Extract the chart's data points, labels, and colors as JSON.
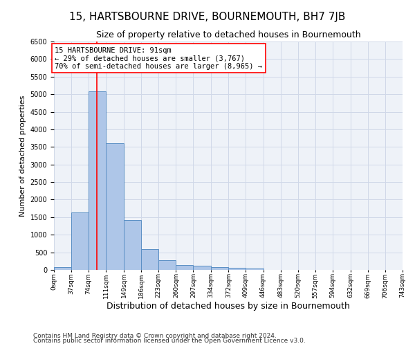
{
  "title": "15, HARTSBOURNE DRIVE, BOURNEMOUTH, BH7 7JB",
  "subtitle": "Size of property relative to detached houses in Bournemouth",
  "xlabel": "Distribution of detached houses by size in Bournemouth",
  "ylabel": "Number of detached properties",
  "footnote1": "Contains HM Land Registry data © Crown copyright and database right 2024.",
  "footnote2": "Contains public sector information licensed under the Open Government Licence v3.0.",
  "bar_values": [
    75,
    1630,
    5080,
    3600,
    1410,
    590,
    285,
    130,
    120,
    80,
    60,
    40,
    0,
    0,
    0,
    0,
    0,
    0,
    0,
    0
  ],
  "bin_edges": [
    0,
    37,
    74,
    111,
    149,
    186,
    223,
    260,
    297,
    334,
    372,
    409,
    446,
    483,
    520,
    557,
    594,
    632,
    669,
    706,
    743
  ],
  "tick_labels": [
    "0sqm",
    "37sqm",
    "74sqm",
    "111sqm",
    "149sqm",
    "186sqm",
    "223sqm",
    "260sqm",
    "297sqm",
    "334sqm",
    "372sqm",
    "409sqm",
    "446sqm",
    "483sqm",
    "520sqm",
    "557sqm",
    "594sqm",
    "632sqm",
    "669sqm",
    "706sqm",
    "743sqm"
  ],
  "bar_color": "#aec6e8",
  "bar_edge_color": "#5a8fc4",
  "grid_color": "#d0d8e8",
  "background_color": "#eef2f8",
  "annotation_text": "15 HARTSBOURNE DRIVE: 91sqm\n← 29% of detached houses are smaller (3,767)\n70% of semi-detached houses are larger (8,965) →",
  "vline_x": 91,
  "ylim": [
    0,
    6500
  ],
  "title_fontsize": 11,
  "subtitle_fontsize": 9,
  "xlabel_fontsize": 9,
  "ylabel_fontsize": 8,
  "annotation_fontsize": 7.5,
  "tick_fontsize": 6.5,
  "footnote_fontsize": 6.5
}
